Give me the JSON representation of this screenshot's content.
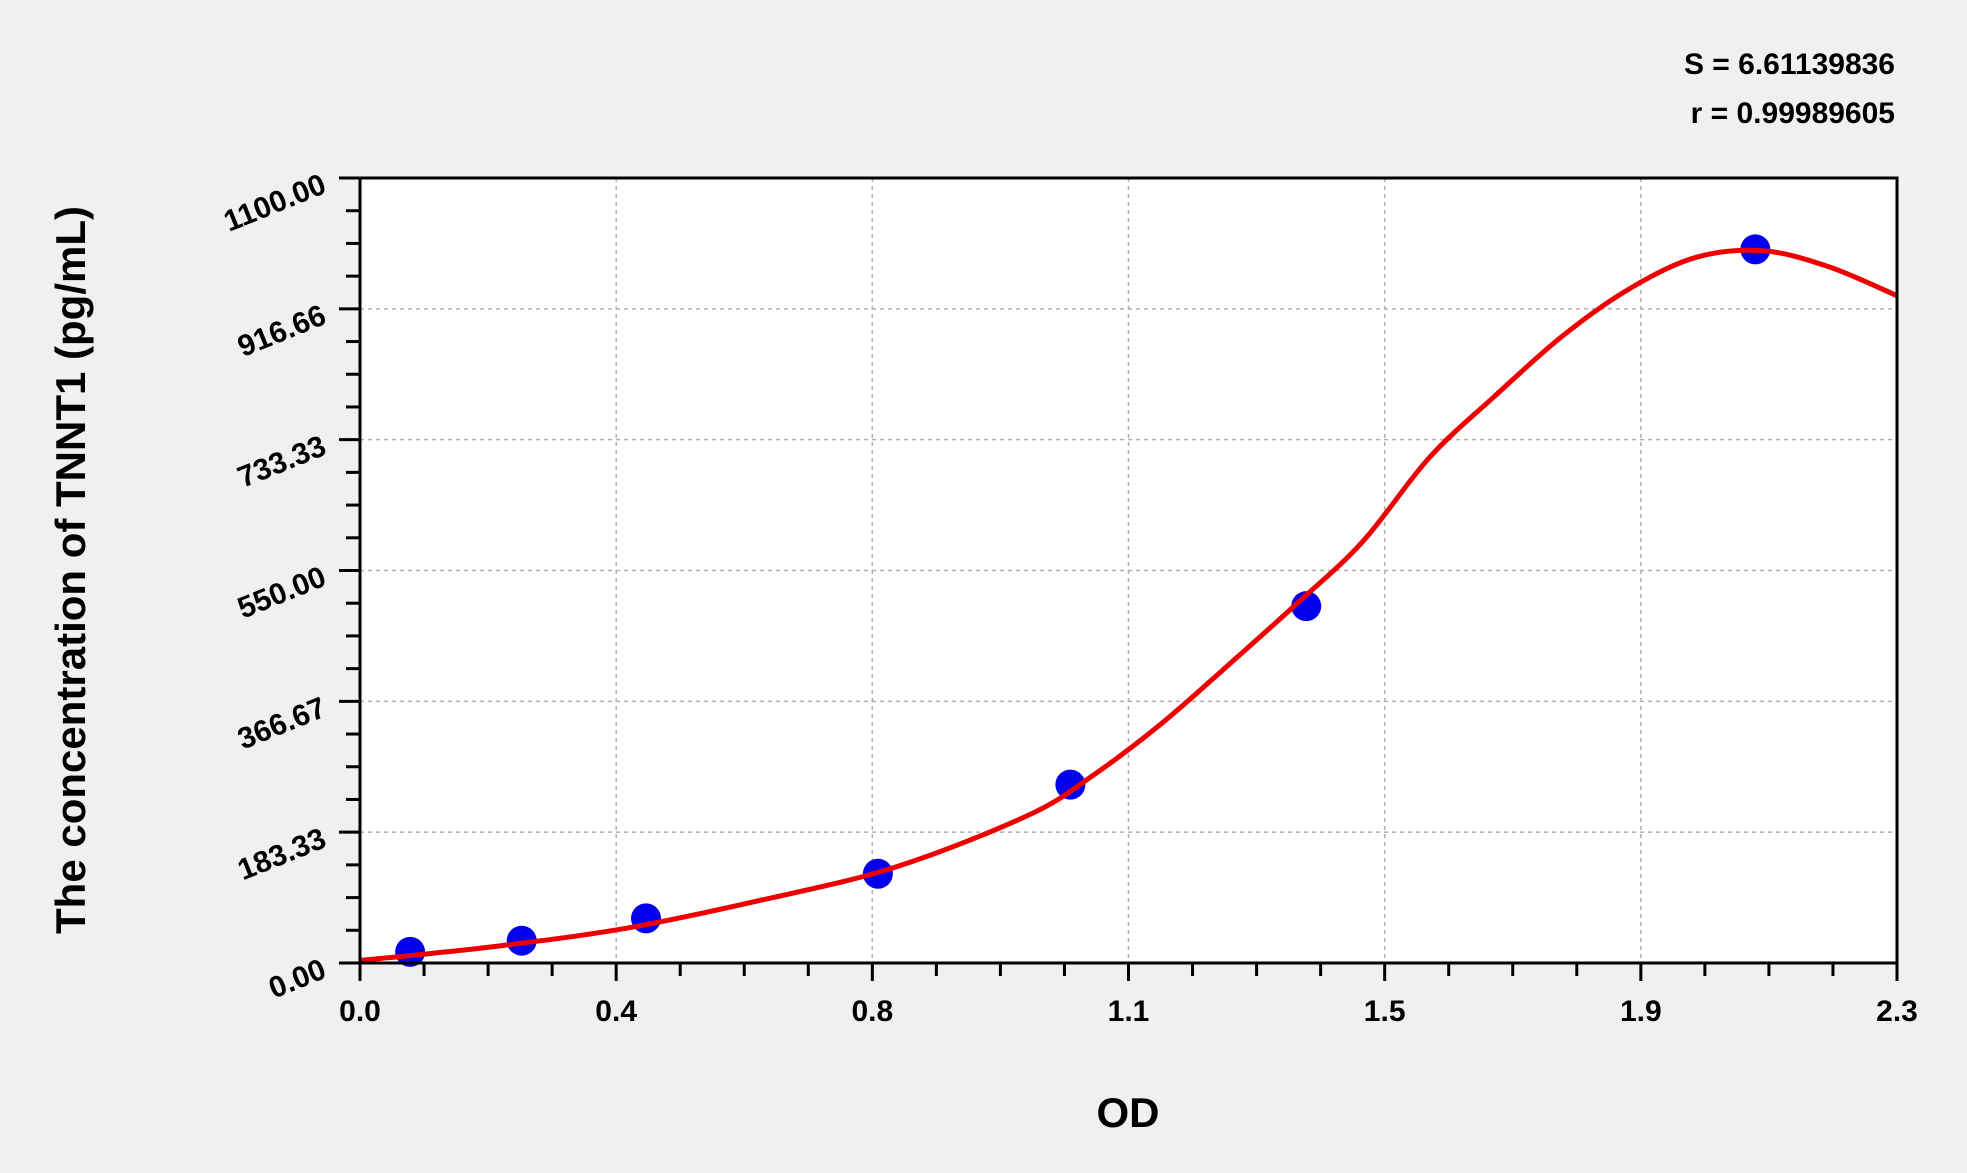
{
  "chart_data": {
    "type": "scatter",
    "xlabel": "OD",
    "ylabel": "The concentration of TNNT1 (pg/mL)",
    "xlim": [
      0,
      2.3
    ],
    "ylim": [
      0,
      1100
    ],
    "x_ticks": [
      "0.0",
      "0.4",
      "0.8",
      "1.1",
      "1.5",
      "1.9",
      "2.3"
    ],
    "y_ticks": [
      "0.00",
      "183.33",
      "366.67",
      "550.00",
      "733.33",
      "916.66",
      "1100.00"
    ],
    "grid": true,
    "annotations": [
      "S = 6.61139836",
      "r = 0.99989605"
    ],
    "colors": {
      "points": "#0000ee",
      "curve": "#ee0000",
      "background": "#f0f0f0",
      "plot_area": "#ffffff"
    },
    "points": {
      "x": [
        0.075,
        0.242,
        0.428,
        0.775,
        1.063,
        1.416,
        2.088
      ],
      "y": [
        15.6,
        31.25,
        62.5,
        125,
        250,
        500,
        1000
      ]
    },
    "fit_curve": {
      "x": [
        0,
        0.2,
        0.4,
        0.6,
        0.8,
        1.0,
        1.1,
        1.2,
        1.3,
        1.4,
        1.5,
        1.6,
        1.7,
        1.8,
        1.9,
        2.0,
        2.1,
        2.2,
        2.3
      ],
      "y": [
        3.5,
        23,
        49,
        88,
        134,
        207,
        265,
        336,
        418,
        502,
        590,
        708,
        796,
        879,
        945,
        989,
        998,
        975,
        935
      ]
    }
  }
}
